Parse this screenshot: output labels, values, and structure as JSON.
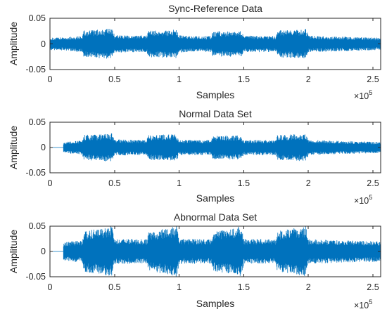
{
  "chart_data": [
    {
      "type": "line",
      "title": "Sync-Reference Data",
      "xlabel": "Samples",
      "ylabel": "Amplitude",
      "xlim": [
        0,
        256000
      ],
      "ylim": [
        -0.05,
        0.05
      ],
      "x_ticks": [
        0,
        50000,
        100000,
        150000,
        200000,
        250000
      ],
      "x_tick_labels": [
        "0",
        "0.5",
        "1",
        "1.5",
        "2",
        "2.5"
      ],
      "y_ticks": [
        -0.05,
        0,
        0.05
      ],
      "y_tick_labels": [
        "-0.05",
        "0",
        "0.05"
      ],
      "x_multiplier": {
        "base": "×10",
        "exp": "5"
      },
      "grid": false,
      "color": "#0072BD",
      "signal_start": 0,
      "envelope": [
        {
          "x": 0,
          "amp": 0.012
        },
        {
          "x": 12000,
          "amp": 0.013
        },
        {
          "x": 25000,
          "amp": 0.016
        },
        {
          "x": 26000,
          "amp": 0.026
        },
        {
          "x": 48000,
          "amp": 0.03
        },
        {
          "x": 50000,
          "amp": 0.018
        },
        {
          "x": 62000,
          "amp": 0.016
        },
        {
          "x": 75000,
          "amp": 0.017
        },
        {
          "x": 76000,
          "amp": 0.026
        },
        {
          "x": 98000,
          "amp": 0.028
        },
        {
          "x": 100000,
          "amp": 0.017
        },
        {
          "x": 112000,
          "amp": 0.015
        },
        {
          "x": 125000,
          "amp": 0.016
        },
        {
          "x": 126000,
          "amp": 0.025
        },
        {
          "x": 148000,
          "amp": 0.025
        },
        {
          "x": 150000,
          "amp": 0.016
        },
        {
          "x": 162000,
          "amp": 0.016
        },
        {
          "x": 175000,
          "amp": 0.016
        },
        {
          "x": 176000,
          "amp": 0.026
        },
        {
          "x": 198000,
          "amp": 0.029
        },
        {
          "x": 200000,
          "amp": 0.016
        },
        {
          "x": 230000,
          "amp": 0.014
        },
        {
          "x": 256000,
          "amp": 0.012
        }
      ]
    },
    {
      "type": "line",
      "title": "Normal Data Set",
      "xlabel": "Samples",
      "ylabel": "Amplitude",
      "xlim": [
        0,
        256000
      ],
      "ylim": [
        -0.05,
        0.05
      ],
      "x_ticks": [
        0,
        50000,
        100000,
        150000,
        200000,
        250000
      ],
      "x_tick_labels": [
        "0",
        "0.5",
        "1",
        "1.5",
        "2",
        "2.5"
      ],
      "y_ticks": [
        -0.05,
        0,
        0.05
      ],
      "y_tick_labels": [
        "-0.05",
        "0",
        "0.05"
      ],
      "x_multiplier": {
        "base": "×10",
        "exp": "5"
      },
      "grid": false,
      "color": "#0072BD",
      "signal_start": 10500,
      "envelope": [
        {
          "x": 10500,
          "amp": 0.011
        },
        {
          "x": 25000,
          "amp": 0.014
        },
        {
          "x": 26000,
          "amp": 0.025
        },
        {
          "x": 48000,
          "amp": 0.028
        },
        {
          "x": 50000,
          "amp": 0.016
        },
        {
          "x": 75000,
          "amp": 0.015
        },
        {
          "x": 76000,
          "amp": 0.025
        },
        {
          "x": 98000,
          "amp": 0.026
        },
        {
          "x": 100000,
          "amp": 0.015
        },
        {
          "x": 125000,
          "amp": 0.015
        },
        {
          "x": 126000,
          "amp": 0.023
        },
        {
          "x": 148000,
          "amp": 0.024
        },
        {
          "x": 150000,
          "amp": 0.015
        },
        {
          "x": 175000,
          "amp": 0.015
        },
        {
          "x": 176000,
          "amp": 0.025
        },
        {
          "x": 198000,
          "amp": 0.027
        },
        {
          "x": 200000,
          "amp": 0.015
        },
        {
          "x": 256000,
          "amp": 0.011
        }
      ]
    },
    {
      "type": "line",
      "title": "Abnormal Data Set",
      "xlabel": "Samples",
      "ylabel": "Amplitude",
      "xlim": [
        0,
        256000
      ],
      "ylim": [
        -0.05,
        0.05
      ],
      "x_ticks": [
        0,
        50000,
        100000,
        150000,
        200000,
        250000
      ],
      "x_tick_labels": [
        "0",
        "0.5",
        "1",
        "1.5",
        "2",
        "2.5"
      ],
      "y_ticks": [
        -0.05,
        0,
        0.05
      ],
      "y_tick_labels": [
        "-0.05",
        "0",
        "0.05"
      ],
      "x_multiplier": {
        "base": "×10",
        "exp": "5"
      },
      "grid": false,
      "color": "#0072BD",
      "signal_start": 10500,
      "envelope": [
        {
          "x": 10500,
          "amp": 0.018
        },
        {
          "x": 25000,
          "amp": 0.022
        },
        {
          "x": 26000,
          "amp": 0.04
        },
        {
          "x": 48000,
          "amp": 0.05
        },
        {
          "x": 50000,
          "amp": 0.025
        },
        {
          "x": 75000,
          "amp": 0.024
        },
        {
          "x": 76000,
          "amp": 0.038
        },
        {
          "x": 98000,
          "amp": 0.05
        },
        {
          "x": 100000,
          "amp": 0.025
        },
        {
          "x": 125000,
          "amp": 0.024
        },
        {
          "x": 126000,
          "amp": 0.038
        },
        {
          "x": 148000,
          "amp": 0.05
        },
        {
          "x": 150000,
          "amp": 0.025
        },
        {
          "x": 175000,
          "amp": 0.024
        },
        {
          "x": 176000,
          "amp": 0.04
        },
        {
          "x": 198000,
          "amp": 0.05
        },
        {
          "x": 200000,
          "amp": 0.024
        },
        {
          "x": 256000,
          "amp": 0.02
        }
      ]
    }
  ]
}
